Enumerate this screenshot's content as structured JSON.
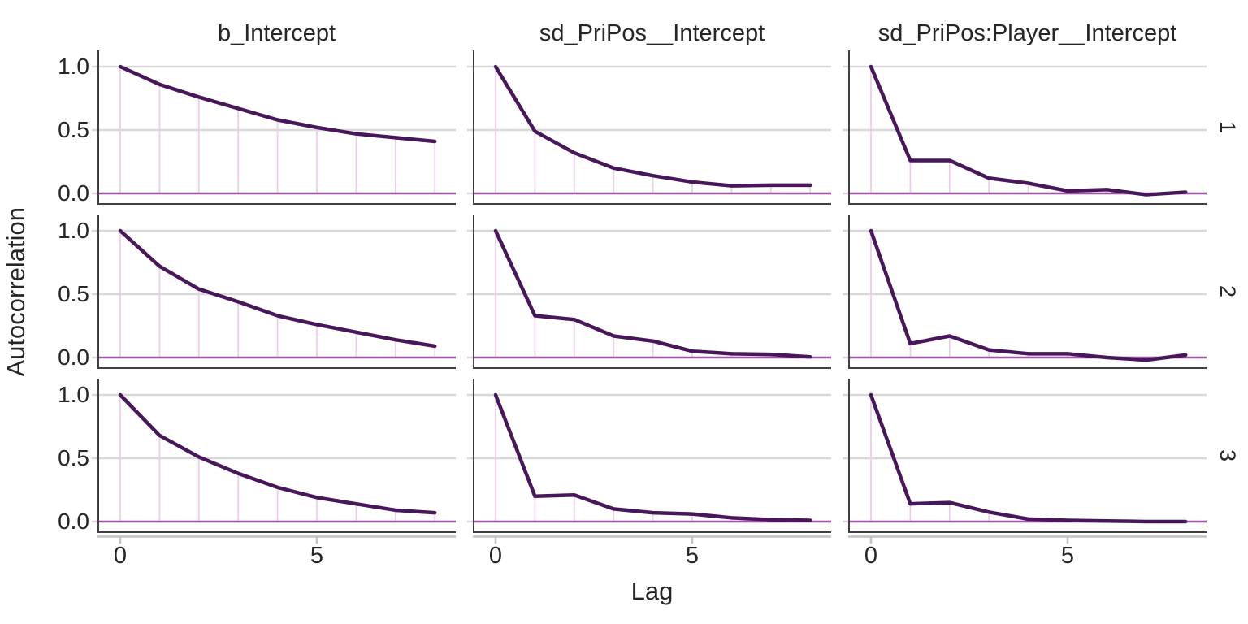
{
  "figure": {
    "ylab": "Autocorrelation",
    "xlab": "Lag",
    "col_titles": [
      "b_Intercept",
      "sd_PriPos__Intercept",
      "sd_PriPos:Player__Intercept"
    ],
    "row_labels": [
      "1",
      "2",
      "3"
    ],
    "y_ticks": [
      "1.0",
      "0.5",
      "0.0"
    ],
    "x_ticks": [
      "0",
      "5"
    ]
  },
  "colors": {
    "curve": "#471759",
    "lag_segment": "#eeccee",
    "zero_line": "#a05aa5",
    "gridline": "#d8d8d8",
    "axis_dark": "#404040",
    "axis_gray": "#c2c2c2",
    "text": "#262626"
  },
  "chart_data": {
    "type": "line",
    "title": "",
    "xlabel": "Lag",
    "ylabel": "Autocorrelation",
    "facet_columns": [
      "b_Intercept",
      "sd_PriPos__Intercept",
      "sd_PriPos:Player__Intercept"
    ],
    "facet_rows": [
      "1",
      "2",
      "3"
    ],
    "x": [
      0,
      1,
      2,
      3,
      4,
      5,
      6,
      7,
      8
    ],
    "x_tick_values": [
      0,
      5
    ],
    "y_tick_values": [
      1.0,
      0.5,
      0.0
    ],
    "xlim": [
      0,
      8
    ],
    "ylim": [
      0,
      1
    ],
    "grid": true,
    "legend": "none",
    "panels": [
      {
        "column": "b_Intercept",
        "row": "1",
        "values": [
          1.0,
          0.86,
          0.76,
          0.67,
          0.58,
          0.52,
          0.47,
          0.44,
          0.41
        ]
      },
      {
        "column": "sd_PriPos__Intercept",
        "row": "1",
        "values": [
          1.0,
          0.49,
          0.32,
          0.2,
          0.14,
          0.09,
          0.06,
          0.065,
          0.065
        ]
      },
      {
        "column": "sd_PriPos:Player__Intercept",
        "row": "1",
        "values": [
          1.0,
          0.26,
          0.26,
          0.12,
          0.08,
          0.02,
          0.03,
          -0.01,
          0.01
        ]
      },
      {
        "column": "b_Intercept",
        "row": "2",
        "values": [
          1.0,
          0.72,
          0.54,
          0.44,
          0.33,
          0.26,
          0.2,
          0.14,
          0.09
        ]
      },
      {
        "column": "sd_PriPos__Intercept",
        "row": "2",
        "values": [
          1.0,
          0.33,
          0.3,
          0.17,
          0.13,
          0.05,
          0.03,
          0.025,
          0.005
        ]
      },
      {
        "column": "sd_PriPos:Player__Intercept",
        "row": "2",
        "values": [
          1.0,
          0.11,
          0.17,
          0.06,
          0.03,
          0.03,
          0.0,
          -0.02,
          0.02
        ]
      },
      {
        "column": "b_Intercept",
        "row": "3",
        "values": [
          1.0,
          0.68,
          0.51,
          0.38,
          0.27,
          0.19,
          0.14,
          0.09,
          0.07
        ]
      },
      {
        "column": "sd_PriPos__Intercept",
        "row": "3",
        "values": [
          1.0,
          0.2,
          0.21,
          0.1,
          0.07,
          0.06,
          0.03,
          0.015,
          0.01
        ]
      },
      {
        "column": "sd_PriPos:Player__Intercept",
        "row": "3",
        "values": [
          1.0,
          0.14,
          0.15,
          0.075,
          0.02,
          0.01,
          0.005,
          0.0,
          0.0
        ]
      }
    ]
  }
}
